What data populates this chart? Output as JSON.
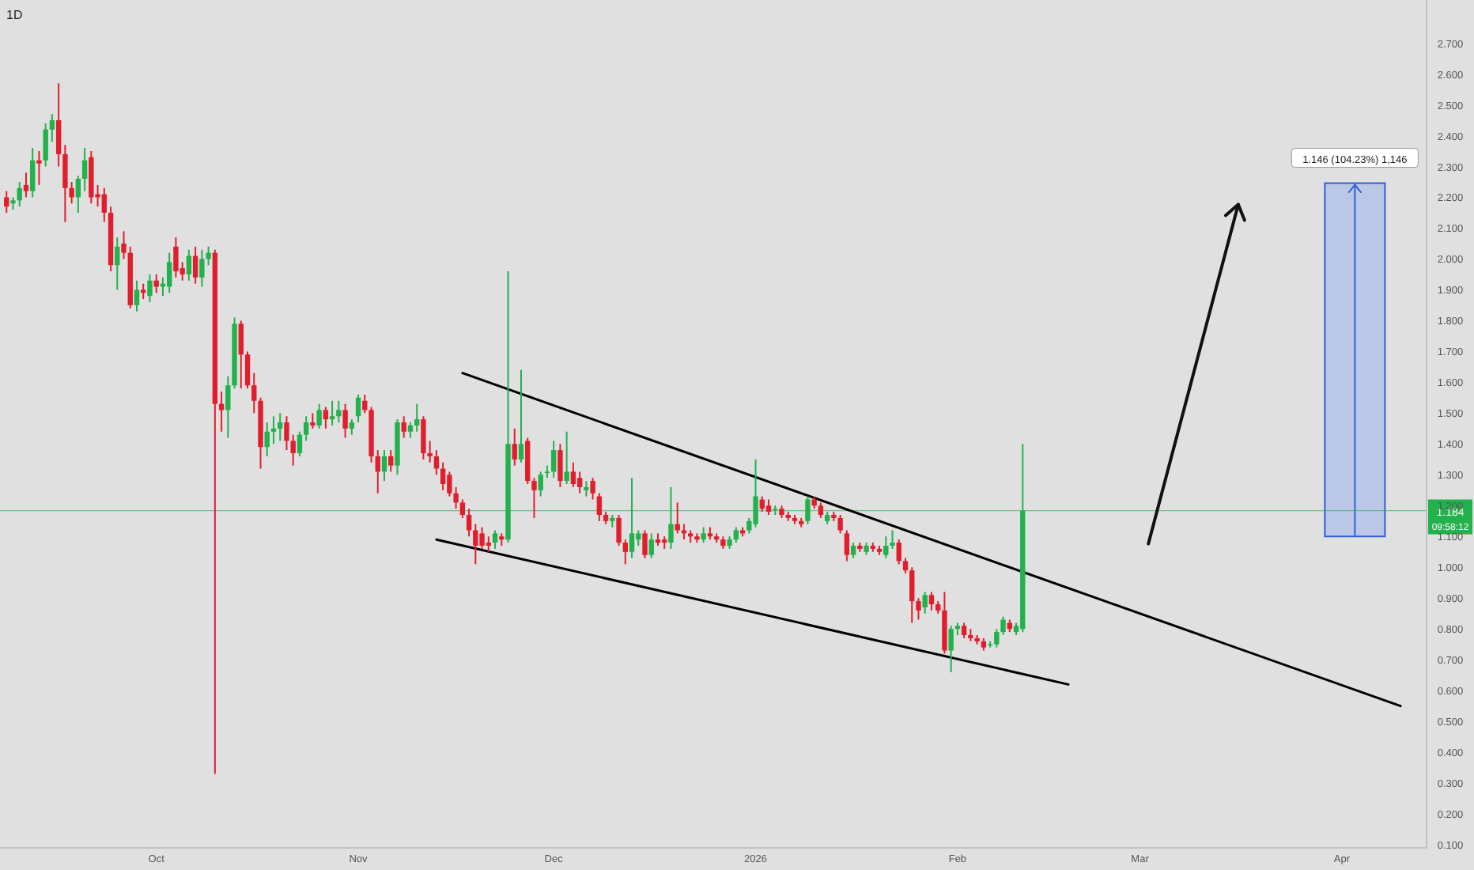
{
  "chart_data": {
    "type": "candlestick",
    "title": "1D",
    "x": [
      "2025-09-08",
      "2025-09-09",
      "2025-09-10",
      "2025-09-11",
      "2025-09-12",
      "2025-09-13",
      "2025-09-14",
      "2025-09-15",
      "2025-09-16",
      "2025-09-17",
      "2025-09-18",
      "2025-09-19",
      "2025-09-20",
      "2025-09-21",
      "2025-09-22",
      "2025-09-23",
      "2025-09-24",
      "2025-09-25",
      "2025-09-26",
      "2025-09-27",
      "2025-09-28",
      "2025-09-29",
      "2025-09-30",
      "2025-10-01",
      "2025-10-02",
      "2025-10-03",
      "2025-10-04",
      "2025-10-05",
      "2025-10-06",
      "2025-10-07",
      "2025-10-08",
      "2025-10-09",
      "2025-10-10",
      "2025-10-11",
      "2025-10-12",
      "2025-10-13",
      "2025-10-14",
      "2025-10-15",
      "2025-10-16",
      "2025-10-17",
      "2025-10-18",
      "2025-10-19",
      "2025-10-20",
      "2025-10-21",
      "2025-10-22",
      "2025-10-23",
      "2025-10-24",
      "2025-10-25",
      "2025-10-26",
      "2025-10-27",
      "2025-10-28",
      "2025-10-29",
      "2025-10-30",
      "2025-10-31",
      "2025-11-01",
      "2025-11-02",
      "2025-11-03",
      "2025-11-04",
      "2025-11-05",
      "2025-11-06",
      "2025-11-07",
      "2025-11-08",
      "2025-11-09",
      "2025-11-10",
      "2025-11-11",
      "2025-11-12",
      "2025-11-13",
      "2025-11-14",
      "2025-11-15",
      "2025-11-16",
      "2025-11-17",
      "2025-11-18",
      "2025-11-19",
      "2025-11-20",
      "2025-11-21",
      "2025-11-22",
      "2025-11-23",
      "2025-11-24",
      "2025-11-25",
      "2025-11-26",
      "2025-11-27",
      "2025-11-28",
      "2025-11-29",
      "2025-11-30",
      "2025-12-01",
      "2025-12-02",
      "2025-12-03",
      "2025-12-04",
      "2025-12-05",
      "2025-12-06",
      "2025-12-07",
      "2025-12-08",
      "2025-12-09",
      "2025-12-10",
      "2025-12-11",
      "2025-12-12",
      "2025-12-13",
      "2025-12-14",
      "2025-12-15",
      "2025-12-16",
      "2025-12-17",
      "2025-12-18",
      "2025-12-19",
      "2025-12-20",
      "2025-12-21",
      "2025-12-22",
      "2025-12-23",
      "2025-12-24",
      "2025-12-25",
      "2025-12-26",
      "2025-12-27",
      "2025-12-28",
      "2025-12-29",
      "2025-12-30",
      "2025-12-31",
      "2026-01-01",
      "2026-01-02",
      "2026-01-03",
      "2026-01-04",
      "2026-01-05",
      "2026-01-06",
      "2026-01-07",
      "2026-01-08",
      "2026-01-09",
      "2026-01-10",
      "2026-01-11",
      "2026-01-12",
      "2026-01-13",
      "2026-01-14",
      "2026-01-15",
      "2026-01-16",
      "2026-01-17",
      "2026-01-18",
      "2026-01-19",
      "2026-01-20",
      "2026-01-21",
      "2026-01-22",
      "2026-01-23",
      "2026-01-24",
      "2026-01-25",
      "2026-01-26",
      "2026-01-27",
      "2026-01-28",
      "2026-01-29",
      "2026-01-30",
      "2026-01-31",
      "2026-02-01",
      "2026-02-02",
      "2026-02-03",
      "2026-02-04",
      "2026-02-05",
      "2026-02-06",
      "2026-02-07",
      "2026-02-08",
      "2026-02-09",
      "2026-02-10",
      "2026-02-11"
    ],
    "ohlc": [
      [
        2.2,
        2.22,
        2.15,
        2.17
      ],
      [
        2.18,
        2.2,
        2.16,
        2.19
      ],
      [
        2.19,
        2.25,
        2.17,
        2.23
      ],
      [
        2.24,
        2.28,
        2.2,
        2.22
      ],
      [
        2.22,
        2.36,
        2.2,
        2.32
      ],
      [
        2.32,
        2.35,
        2.24,
        2.31
      ],
      [
        2.32,
        2.44,
        2.3,
        2.42
      ],
      [
        2.42,
        2.47,
        2.38,
        2.45
      ],
      [
        2.45,
        2.57,
        2.3,
        2.34
      ],
      [
        2.34,
        2.37,
        2.12,
        2.23
      ],
      [
        2.23,
        2.25,
        2.18,
        2.2
      ],
      [
        2.2,
        2.27,
        2.15,
        2.26
      ],
      [
        2.26,
        2.36,
        2.22,
        2.32
      ],
      [
        2.33,
        2.35,
        2.18,
        2.2
      ],
      [
        2.21,
        2.24,
        2.17,
        2.2
      ],
      [
        2.21,
        2.23,
        2.12,
        2.15
      ],
      [
        2.15,
        2.17,
        1.96,
        1.98
      ],
      [
        1.98,
        2.07,
        1.9,
        2.04
      ],
      [
        2.05,
        2.09,
        2.0,
        2.02
      ],
      [
        2.02,
        2.04,
        1.84,
        1.85
      ],
      [
        1.85,
        1.93,
        1.83,
        1.9
      ],
      [
        1.9,
        1.92,
        1.87,
        1.89
      ],
      [
        1.88,
        1.95,
        1.86,
        1.93
      ],
      [
        1.93,
        1.95,
        1.89,
        1.91
      ],
      [
        1.91,
        1.94,
        1.88,
        1.92
      ],
      [
        1.91,
        2.02,
        1.89,
        1.99
      ],
      [
        2.04,
        2.07,
        1.94,
        1.96
      ],
      [
        1.97,
        1.99,
        1.93,
        1.95
      ],
      [
        1.95,
        2.03,
        1.93,
        2.01
      ],
      [
        2.01,
        2.04,
        1.92,
        1.94
      ],
      [
        1.94,
        2.03,
        1.91,
        2.0
      ],
      [
        2.0,
        2.04,
        1.98,
        2.02
      ],
      [
        2.02,
        2.03,
        0.33,
        1.53
      ],
      [
        1.53,
        1.57,
        1.44,
        1.51
      ],
      [
        1.51,
        1.62,
        1.42,
        1.59
      ],
      [
        1.59,
        1.81,
        1.58,
        1.79
      ],
      [
        1.79,
        1.8,
        1.58,
        1.69
      ],
      [
        1.69,
        1.7,
        1.58,
        1.59
      ],
      [
        1.59,
        1.63,
        1.5,
        1.54
      ],
      [
        1.54,
        1.55,
        1.32,
        1.39
      ],
      [
        1.39,
        1.47,
        1.36,
        1.44
      ],
      [
        1.44,
        1.49,
        1.4,
        1.45
      ],
      [
        1.45,
        1.5,
        1.41,
        1.47
      ],
      [
        1.47,
        1.49,
        1.38,
        1.41
      ],
      [
        1.41,
        1.43,
        1.33,
        1.37
      ],
      [
        1.37,
        1.44,
        1.36,
        1.43
      ],
      [
        1.43,
        1.49,
        1.41,
        1.47
      ],
      [
        1.47,
        1.5,
        1.45,
        1.46
      ],
      [
        1.46,
        1.53,
        1.45,
        1.51
      ],
      [
        1.51,
        1.52,
        1.45,
        1.48
      ],
      [
        1.48,
        1.54,
        1.46,
        1.49
      ],
      [
        1.49,
        1.54,
        1.47,
        1.51
      ],
      [
        1.51,
        1.53,
        1.42,
        1.45
      ],
      [
        1.45,
        1.48,
        1.43,
        1.47
      ],
      [
        1.49,
        1.56,
        1.47,
        1.55
      ],
      [
        1.54,
        1.56,
        1.5,
        1.51
      ],
      [
        1.51,
        1.52,
        1.34,
        1.36
      ],
      [
        1.36,
        1.38,
        1.24,
        1.31
      ],
      [
        1.31,
        1.38,
        1.28,
        1.36
      ],
      [
        1.36,
        1.38,
        1.31,
        1.33
      ],
      [
        1.33,
        1.48,
        1.3,
        1.47
      ],
      [
        1.47,
        1.49,
        1.42,
        1.44
      ],
      [
        1.44,
        1.47,
        1.42,
        1.46
      ],
      [
        1.46,
        1.53,
        1.44,
        1.48
      ],
      [
        1.48,
        1.49,
        1.35,
        1.37
      ],
      [
        1.37,
        1.41,
        1.34,
        1.36
      ],
      [
        1.36,
        1.38,
        1.3,
        1.32
      ],
      [
        1.32,
        1.34,
        1.25,
        1.27
      ],
      [
        1.3,
        1.31,
        1.23,
        1.24
      ],
      [
        1.24,
        1.26,
        1.19,
        1.21
      ],
      [
        1.21,
        1.22,
        1.16,
        1.17
      ],
      [
        1.17,
        1.19,
        1.1,
        1.12
      ],
      [
        1.12,
        1.14,
        1.01,
        1.07
      ],
      [
        1.11,
        1.13,
        1.06,
        1.07
      ],
      [
        1.08,
        1.1,
        1.05,
        1.07
      ],
      [
        1.08,
        1.12,
        1.06,
        1.11
      ],
      [
        1.1,
        1.11,
        1.07,
        1.09
      ],
      [
        1.09,
        1.96,
        1.08,
        1.4
      ],
      [
        1.4,
        1.45,
        1.33,
        1.35
      ],
      [
        1.35,
        1.64,
        1.34,
        1.4
      ],
      [
        1.41,
        1.42,
        1.27,
        1.28
      ],
      [
        1.28,
        1.29,
        1.16,
        1.25
      ],
      [
        1.25,
        1.31,
        1.23,
        1.3
      ],
      [
        1.31,
        1.33,
        1.29,
        1.31
      ],
      [
        1.31,
        1.41,
        1.29,
        1.38
      ],
      [
        1.38,
        1.4,
        1.26,
        1.28
      ],
      [
        1.28,
        1.44,
        1.27,
        1.31
      ],
      [
        1.31,
        1.34,
        1.26,
        1.27
      ],
      [
        1.29,
        1.31,
        1.24,
        1.26
      ],
      [
        1.25,
        1.28,
        1.23,
        1.26
      ],
      [
        1.28,
        1.29,
        1.22,
        1.24
      ],
      [
        1.23,
        1.24,
        1.15,
        1.17
      ],
      [
        1.17,
        1.18,
        1.14,
        1.15
      ],
      [
        1.15,
        1.17,
        1.13,
        1.16
      ],
      [
        1.16,
        1.17,
        1.07,
        1.08
      ],
      [
        1.08,
        1.09,
        1.01,
        1.05
      ],
      [
        1.05,
        1.29,
        1.03,
        1.11
      ],
      [
        1.09,
        1.12,
        1.07,
        1.11
      ],
      [
        1.11,
        1.12,
        1.03,
        1.04
      ],
      [
        1.04,
        1.11,
        1.03,
        1.09
      ],
      [
        1.09,
        1.11,
        1.07,
        1.08
      ],
      [
        1.09,
        1.1,
        1.06,
        1.08
      ],
      [
        1.08,
        1.26,
        1.06,
        1.14
      ],
      [
        1.14,
        1.21,
        1.11,
        1.12
      ],
      [
        1.12,
        1.14,
        1.09,
        1.11
      ],
      [
        1.11,
        1.12,
        1.08,
        1.1
      ],
      [
        1.1,
        1.11,
        1.08,
        1.09
      ],
      [
        1.09,
        1.13,
        1.08,
        1.11
      ],
      [
        1.11,
        1.13,
        1.09,
        1.1
      ],
      [
        1.1,
        1.11,
        1.08,
        1.09
      ],
      [
        1.09,
        1.1,
        1.06,
        1.07
      ],
      [
        1.07,
        1.1,
        1.06,
        1.09
      ],
      [
        1.09,
        1.13,
        1.08,
        1.12
      ],
      [
        1.12,
        1.13,
        1.1,
        1.11
      ],
      [
        1.12,
        1.16,
        1.11,
        1.15
      ],
      [
        1.14,
        1.35,
        1.13,
        1.23
      ],
      [
        1.22,
        1.23,
        1.18,
        1.19
      ],
      [
        1.2,
        1.22,
        1.17,
        1.18
      ],
      [
        1.19,
        1.2,
        1.17,
        1.19
      ],
      [
        1.19,
        1.2,
        1.16,
        1.17
      ],
      [
        1.17,
        1.18,
        1.15,
        1.16
      ],
      [
        1.16,
        1.17,
        1.14,
        1.15
      ],
      [
        1.15,
        1.16,
        1.13,
        1.14
      ],
      [
        1.15,
        1.23,
        1.14,
        1.22
      ],
      [
        1.22,
        1.23,
        1.19,
        1.2
      ],
      [
        1.2,
        1.21,
        1.16,
        1.17
      ],
      [
        1.15,
        1.18,
        1.14,
        1.17
      ],
      [
        1.17,
        1.18,
        1.15,
        1.16
      ],
      [
        1.16,
        1.17,
        1.11,
        1.12
      ],
      [
        1.11,
        1.12,
        1.02,
        1.04
      ],
      [
        1.04,
        1.08,
        1.03,
        1.07
      ],
      [
        1.07,
        1.08,
        1.05,
        1.06
      ],
      [
        1.05,
        1.08,
        1.04,
        1.07
      ],
      [
        1.07,
        1.08,
        1.05,
        1.06
      ],
      [
        1.06,
        1.07,
        1.04,
        1.05
      ],
      [
        1.04,
        1.1,
        1.03,
        1.07
      ],
      [
        1.07,
        1.12,
        1.06,
        1.08
      ],
      [
        1.08,
        1.09,
        1.01,
        1.02
      ],
      [
        1.02,
        1.03,
        0.98,
        0.99
      ],
      [
        0.99,
        1.0,
        0.82,
        0.89
      ],
      [
        0.89,
        0.9,
        0.83,
        0.86
      ],
      [
        0.87,
        0.92,
        0.85,
        0.91
      ],
      [
        0.91,
        0.92,
        0.86,
        0.88
      ],
      [
        0.88,
        0.89,
        0.85,
        0.86
      ],
      [
        0.86,
        0.92,
        0.72,
        0.73
      ],
      [
        0.73,
        0.81,
        0.66,
        0.8
      ],
      [
        0.8,
        0.82,
        0.78,
        0.81
      ],
      [
        0.81,
        0.82,
        0.77,
        0.78
      ],
      [
        0.78,
        0.8,
        0.76,
        0.77
      ],
      [
        0.77,
        0.78,
        0.75,
        0.76
      ],
      [
        0.76,
        0.77,
        0.73,
        0.74
      ],
      [
        0.75,
        0.76,
        0.74,
        0.75
      ],
      [
        0.75,
        0.8,
        0.74,
        0.79
      ],
      [
        0.79,
        0.84,
        0.78,
        0.83
      ],
      [
        0.82,
        0.83,
        0.79,
        0.8
      ],
      [
        0.79,
        0.82,
        0.78,
        0.81
      ],
      [
        0.8,
        1.4,
        0.79,
        1.184
      ]
    ],
    "series": [
      {
        "type": "line",
        "color": "#000000",
        "x": [
          "2025-11-17",
          "2026-04-10"
        ],
        "values": [
          1.63,
          0.55
        ]
      },
      {
        "type": "line",
        "color": "#000000",
        "x": [
          "2025-11-13",
          "2026-02-18"
        ],
        "values": [
          1.09,
          0.62
        ]
      }
    ],
    "xlim": [
      "2025-09-07",
      "2026-04-14"
    ],
    "xticks": [
      {
        "value": "2025-10-01",
        "label": "Oct"
      },
      {
        "value": "2025-11-01",
        "label": "Nov"
      },
      {
        "value": "2025-12-01",
        "label": "Dec"
      },
      {
        "value": "2026-01-01",
        "label": "2026"
      },
      {
        "value": "2026-02-01",
        "label": "Feb"
      },
      {
        "value": "2026-03-01",
        "label": "Mar"
      },
      {
        "value": "2026-04-01",
        "label": "Apr"
      }
    ],
    "ylim": [
      0.09,
      2.84
    ],
    "yticks": [
      {
        "value": 0.1,
        "label": "0.100"
      },
      {
        "value": 0.2,
        "label": "0.200"
      },
      {
        "value": 0.3,
        "label": "0.300"
      },
      {
        "value": 0.4,
        "label": "0.400"
      },
      {
        "value": 0.5,
        "label": "0.500"
      },
      {
        "value": 0.6,
        "label": "0.600"
      },
      {
        "value": 0.7,
        "label": "0.700"
      },
      {
        "value": 0.8,
        "label": "0.800"
      },
      {
        "value": 0.9,
        "label": "0.900"
      },
      {
        "value": 1.0,
        "label": "1.000"
      },
      {
        "value": 1.1,
        "label": "1.100"
      },
      {
        "value": 1.2,
        "label": "1.200"
      },
      {
        "value": 1.3,
        "label": "1.300"
      },
      {
        "value": 1.4,
        "label": "1.400"
      },
      {
        "value": 1.5,
        "label": "1.500"
      },
      {
        "value": 1.6,
        "label": "1.600"
      },
      {
        "value": 1.7,
        "label": "1.700"
      },
      {
        "value": 1.8,
        "label": "1.800"
      },
      {
        "value": 1.9,
        "label": "1.900"
      },
      {
        "value": 2.0,
        "label": "2.000"
      },
      {
        "value": 2.1,
        "label": "2.100"
      },
      {
        "value": 2.2,
        "label": "2.200"
      },
      {
        "value": 2.3,
        "label": "2.300"
      },
      {
        "value": 2.4,
        "label": "2.400"
      },
      {
        "value": 2.5,
        "label": "2.500"
      },
      {
        "value": 2.6,
        "label": "2.600"
      },
      {
        "value": 2.7,
        "label": "2.700"
      }
    ],
    "ref_lines": [
      {
        "axis": "y",
        "value": 1.184,
        "label": "1.184",
        "color": "#22b14c"
      }
    ],
    "bands": [
      {
        "axis": "y",
        "from": 1.1,
        "to": 2.246,
        "color": "#aebfe8"
      }
    ],
    "annotations": [
      {
        "text": "1.146 (104.23%) 1,146",
        "x": "2026-04-03",
        "y": 2.246
      },
      "09:58:12"
    ]
  }
}
